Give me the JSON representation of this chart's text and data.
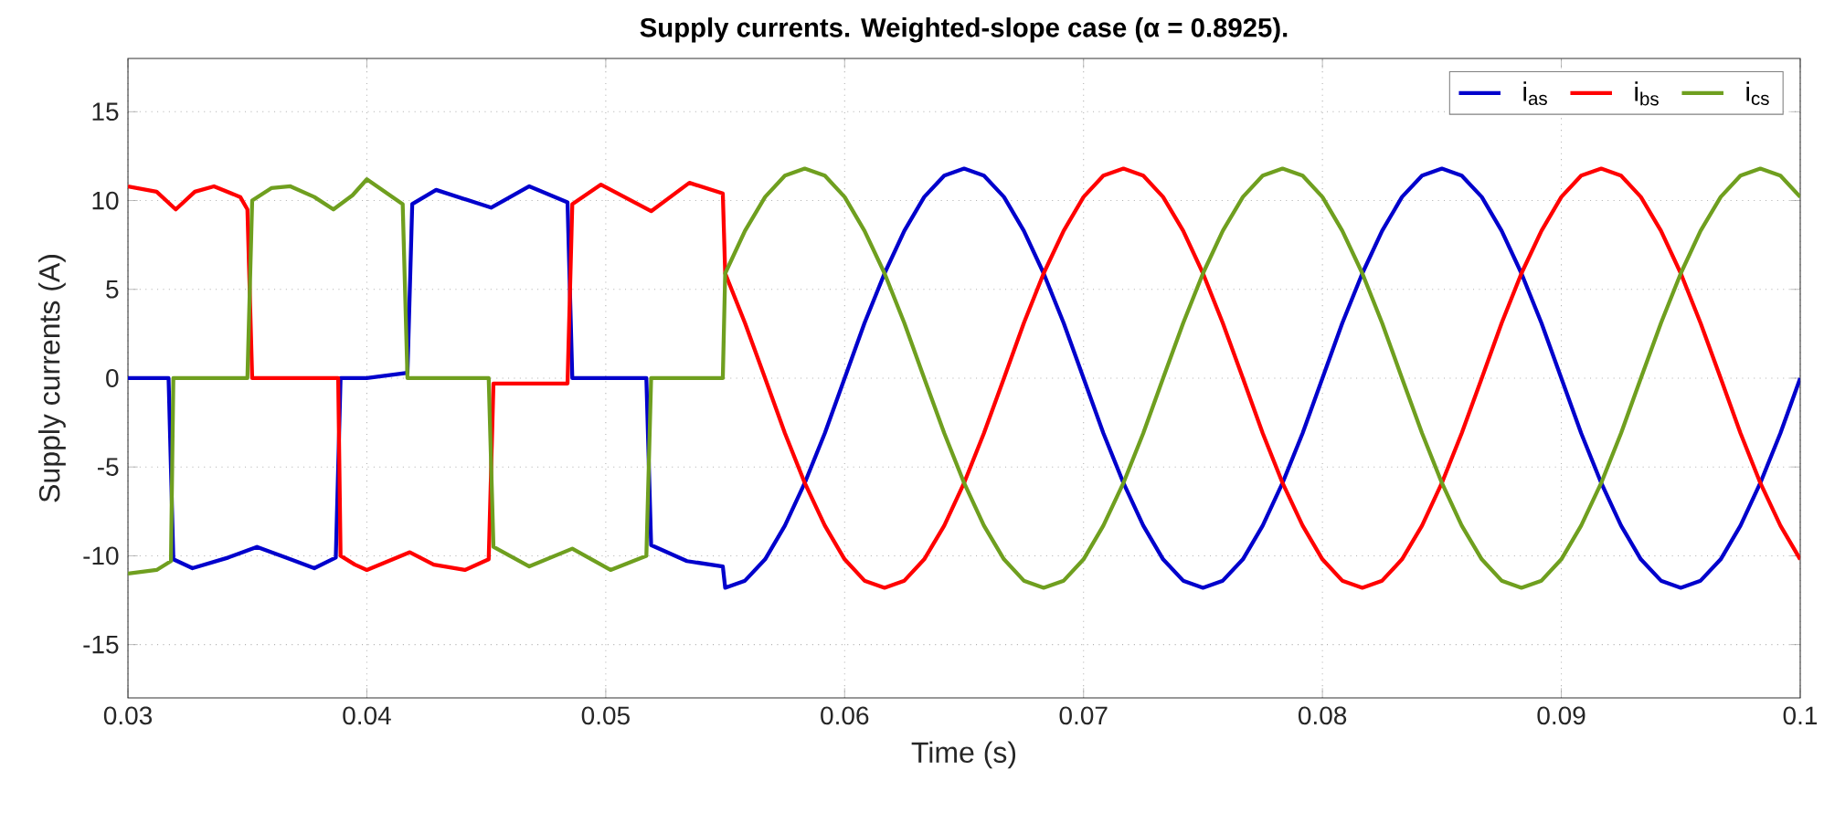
{
  "chart_data": {
    "type": "line",
    "title": "Supply currents. Weighted-slope case (α = 0.8925).",
    "xlabel": "Time (s)",
    "ylabel": "Supply currents (A)",
    "xlim": [
      0.03,
      0.1
    ],
    "ylim": [
      -18,
      18
    ],
    "xticks": [
      0.03,
      0.04,
      0.05,
      0.06,
      0.07,
      0.08,
      0.09,
      0.1
    ],
    "yticks": [
      -15,
      -10,
      -5,
      0,
      5,
      10,
      15
    ],
    "grid": true,
    "legend": "top right",
    "marker": "none",
    "line_style": "solid",
    "series": [
      {
        "name": "i$_{as}$",
        "color": "#0000cc",
        "x": [
          0.03,
          0.0317,
          0.0319,
          0.0327,
          0.0342,
          0.0354,
          0.0366,
          0.0378,
          0.0387,
          0.0389,
          0.04,
          0.0417,
          0.0419,
          0.0429,
          0.0452,
          0.0468,
          0.0484,
          0.0486,
          0.0517,
          0.0519,
          0.0534,
          0.0549,
          0.055,
          0.05583,
          0.05667,
          0.0575,
          0.05833,
          0.05917,
          0.06,
          0.06083,
          0.06167,
          0.0625,
          0.06333,
          0.06417,
          0.065,
          0.06583,
          0.06667,
          0.0675,
          0.06833,
          0.06917,
          0.07,
          0.07083,
          0.07167,
          0.0725,
          0.07333,
          0.07417,
          0.075,
          0.07583,
          0.07667,
          0.0775,
          0.07833,
          0.07917,
          0.08,
          0.08083,
          0.08167,
          0.0825,
          0.08333,
          0.08417,
          0.085,
          0.08583,
          0.08667,
          0.0875,
          0.08833,
          0.08917,
          0.09,
          0.09083,
          0.09167,
          0.0925,
          0.09333,
          0.09417,
          0.095,
          0.09583,
          0.09667,
          0.0975,
          0.09833,
          0.09917,
          0.1
        ],
        "values": [
          0,
          0,
          -10.2,
          -10.7,
          -10.1,
          -9.5,
          -10.1,
          -10.7,
          -10.1,
          0,
          0,
          0.3,
          9.8,
          10.6,
          9.6,
          10.8,
          9.9,
          0,
          0,
          -9.4,
          -10.3,
          -10.6,
          -11.8,
          -11.4,
          -10.2,
          -8.3,
          -5.9,
          -3.1,
          0,
          3.1,
          5.9,
          8.3,
          10.2,
          11.4,
          11.8,
          11.4,
          10.2,
          8.3,
          5.9,
          3.1,
          0,
          -3.1,
          -5.9,
          -8.3,
          -10.2,
          -11.4,
          -11.8,
          -11.4,
          -10.2,
          -8.3,
          -5.9,
          -3.1,
          0,
          3.1,
          5.9,
          8.3,
          10.2,
          11.4,
          11.8,
          11.4,
          10.2,
          8.3,
          5.9,
          3.1,
          0,
          -3.1,
          -5.9,
          -8.3,
          -10.2,
          -11.4,
          -11.8,
          -11.4,
          -10.2,
          -8.3,
          -5.9,
          -3.1,
          0
        ]
      },
      {
        "name": "i$_{bs}$",
        "color": "#ff0000",
        "x": [
          0.03,
          0.0312,
          0.032,
          0.0328,
          0.0336,
          0.0347,
          0.035,
          0.0352,
          0.0388,
          0.0389,
          0.0395,
          0.04,
          0.0418,
          0.0428,
          0.0441,
          0.0451,
          0.0453,
          0.0484,
          0.0486,
          0.0498,
          0.0519,
          0.0535,
          0.0549,
          0.055,
          0.05583,
          0.05667,
          0.0575,
          0.05833,
          0.05917,
          0.06,
          0.06083,
          0.06167,
          0.0625,
          0.06333,
          0.06417,
          0.065,
          0.06583,
          0.06667,
          0.0675,
          0.06833,
          0.06917,
          0.07,
          0.07083,
          0.07167,
          0.0725,
          0.07333,
          0.07417,
          0.075,
          0.07583,
          0.07667,
          0.0775,
          0.07833,
          0.07917,
          0.08,
          0.08083,
          0.08167,
          0.0825,
          0.08333,
          0.08417,
          0.085,
          0.08583,
          0.08667,
          0.0875,
          0.08833,
          0.08917,
          0.09,
          0.09083,
          0.09167,
          0.0925,
          0.09333,
          0.09417,
          0.095,
          0.09583,
          0.09667,
          0.0975,
          0.09833,
          0.09917,
          0.1
        ],
        "values": [
          10.8,
          10.5,
          9.5,
          10.5,
          10.8,
          10.2,
          9.5,
          0,
          0,
          -10,
          -10.5,
          -10.8,
          -9.8,
          -10.5,
          -10.8,
          -10.2,
          -0.3,
          -0.3,
          9.8,
          10.9,
          9.4,
          11,
          10.4,
          5.9,
          3.1,
          0,
          -3.1,
          -5.9,
          -8.3,
          -10.2,
          -11.4,
          -11.8,
          -11.4,
          -10.2,
          -8.3,
          -5.9,
          -3.1,
          0,
          3.1,
          5.9,
          8.3,
          10.2,
          11.4,
          11.8,
          11.4,
          10.2,
          8.3,
          5.9,
          3.1,
          0,
          -3.1,
          -5.9,
          -8.3,
          -10.2,
          -11.4,
          -11.8,
          -11.4,
          -10.2,
          -8.3,
          -5.9,
          -3.1,
          0,
          3.1,
          5.9,
          8.3,
          10.2,
          11.4,
          11.8,
          11.4,
          10.2,
          8.3,
          5.9,
          3.1,
          0,
          -3.1,
          -5.9,
          -8.3,
          -10.2
        ]
      },
      {
        "name": "i$_{cs}$",
        "color": "#6f9f1f",
        "x": [
          0.03,
          0.0312,
          0.0318,
          0.0319,
          0.035,
          0.0352,
          0.036,
          0.0368,
          0.0378,
          0.0386,
          0.0394,
          0.04,
          0.0415,
          0.0417,
          0.0451,
          0.0453,
          0.0468,
          0.0486,
          0.0502,
          0.0517,
          0.0519,
          0.0549,
          0.055,
          0.05583,
          0.05667,
          0.0575,
          0.05833,
          0.05917,
          0.06,
          0.06083,
          0.06167,
          0.0625,
          0.06333,
          0.06417,
          0.065,
          0.06583,
          0.06667,
          0.0675,
          0.06833,
          0.06917,
          0.07,
          0.07083,
          0.07167,
          0.0725,
          0.07333,
          0.07417,
          0.075,
          0.07583,
          0.07667,
          0.0775,
          0.07833,
          0.07917,
          0.08,
          0.08083,
          0.08167,
          0.0825,
          0.08333,
          0.08417,
          0.085,
          0.08583,
          0.08667,
          0.0875,
          0.08833,
          0.08917,
          0.09,
          0.09083,
          0.09167,
          0.0925,
          0.09333,
          0.09417,
          0.095,
          0.09583,
          0.09667,
          0.0975,
          0.09833,
          0.09917,
          0.1
        ],
        "values": [
          -11,
          -10.8,
          -10.3,
          0,
          0,
          10,
          10.7,
          10.8,
          10.2,
          9.5,
          10.3,
          11.2,
          9.8,
          0,
          0,
          -9.5,
          -10.6,
          -9.6,
          -10.8,
          -10,
          0,
          0,
          5.9,
          8.3,
          10.2,
          11.4,
          11.8,
          11.4,
          10.2,
          8.3,
          5.9,
          3.1,
          0,
          -3.1,
          -5.9,
          -8.3,
          -10.2,
          -11.4,
          -11.8,
          -11.4,
          -10.2,
          -8.3,
          -5.9,
          -3.1,
          0,
          3.1,
          5.9,
          8.3,
          10.2,
          11.4,
          11.8,
          11.4,
          10.2,
          8.3,
          5.9,
          3.1,
          0,
          -3.1,
          -5.9,
          -8.3,
          -10.2,
          -11.4,
          -11.8,
          -11.4,
          -10.2,
          -8.3,
          -5.9,
          -3.1,
          0,
          3.1,
          5.9,
          8.3,
          10.2,
          11.4,
          11.8,
          11.4,
          10.2
        ]
      }
    ]
  }
}
